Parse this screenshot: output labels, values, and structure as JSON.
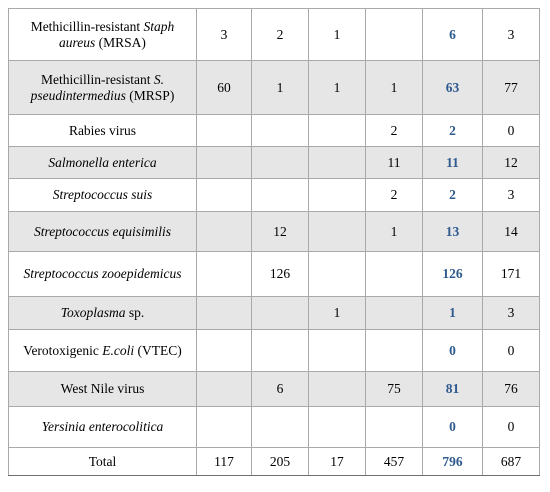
{
  "rows": [
    {
      "name": [
        {
          "t": "Methicillin-resistant "
        },
        {
          "t": "Staph aureus",
          "i": true
        },
        {
          "t": " (MRSA)"
        }
      ],
      "cells": [
        "3",
        "2",
        "1",
        "",
        "6",
        "3"
      ],
      "shaded": false
    },
    {
      "name": [
        {
          "t": "Methicillin-resistant "
        },
        {
          "t": "S. pseudintermedius",
          "i": true
        },
        {
          "t": " (MRSP)"
        }
      ],
      "cells": [
        "60",
        "1",
        "1",
        "1",
        "63",
        "77"
      ],
      "shaded": true
    },
    {
      "name": [
        {
          "t": "Rabies virus"
        }
      ],
      "cells": [
        "",
        "",
        "",
        "2",
        "2",
        "0"
      ],
      "shaded": false
    },
    {
      "name": [
        {
          "t": "Salmonella enterica",
          "i": true
        }
      ],
      "cells": [
        "",
        "",
        "",
        "11",
        "11",
        "12"
      ],
      "shaded": true
    },
    {
      "name": [
        {
          "t": "Streptococcus suis",
          "i": true
        }
      ],
      "cells": [
        "",
        "",
        "",
        "2",
        "2",
        "3"
      ],
      "shaded": false
    },
    {
      "name": [
        {
          "t": "Streptococcus equisimilis",
          "i": true
        }
      ],
      "cells": [
        "",
        "12",
        "",
        "1",
        "13",
        "14"
      ],
      "shaded": true
    },
    {
      "name": [
        {
          "t": "Streptococcus zooepidemicus",
          "i": true
        }
      ],
      "cells": [
        "",
        "126",
        "",
        "",
        "126",
        "171"
      ],
      "shaded": false
    },
    {
      "name": [
        {
          "t": "Toxoplasma",
          "i": true
        },
        {
          "t": " sp."
        }
      ],
      "cells": [
        "",
        "",
        "1",
        "",
        "1",
        "3"
      ],
      "shaded": true
    },
    {
      "name": [
        {
          "t": "Verotoxigenic "
        },
        {
          "t": "E.coli",
          "i": true
        },
        {
          "t": " (VTEC)"
        }
      ],
      "cells": [
        "",
        "",
        "",
        "",
        "0",
        "0"
      ],
      "shaded": false
    },
    {
      "name": [
        {
          "t": "West Nile virus"
        }
      ],
      "cells": [
        "",
        "6",
        "",
        "75",
        "81",
        "76"
      ],
      "shaded": true
    },
    {
      "name": [
        {
          "t": "Yersinia enterocolitica",
          "i": true
        }
      ],
      "cells": [
        "",
        "",
        "",
        "",
        "0",
        "0"
      ],
      "shaded": false
    }
  ],
  "total": {
    "label": "Total",
    "cells": [
      "117",
      "205",
      "17",
      "457",
      "796",
      "687"
    ]
  },
  "colors": {
    "shade": "#e6e6e6",
    "total_value": "#2e5a8f",
    "border": "#a9a9a9"
  }
}
